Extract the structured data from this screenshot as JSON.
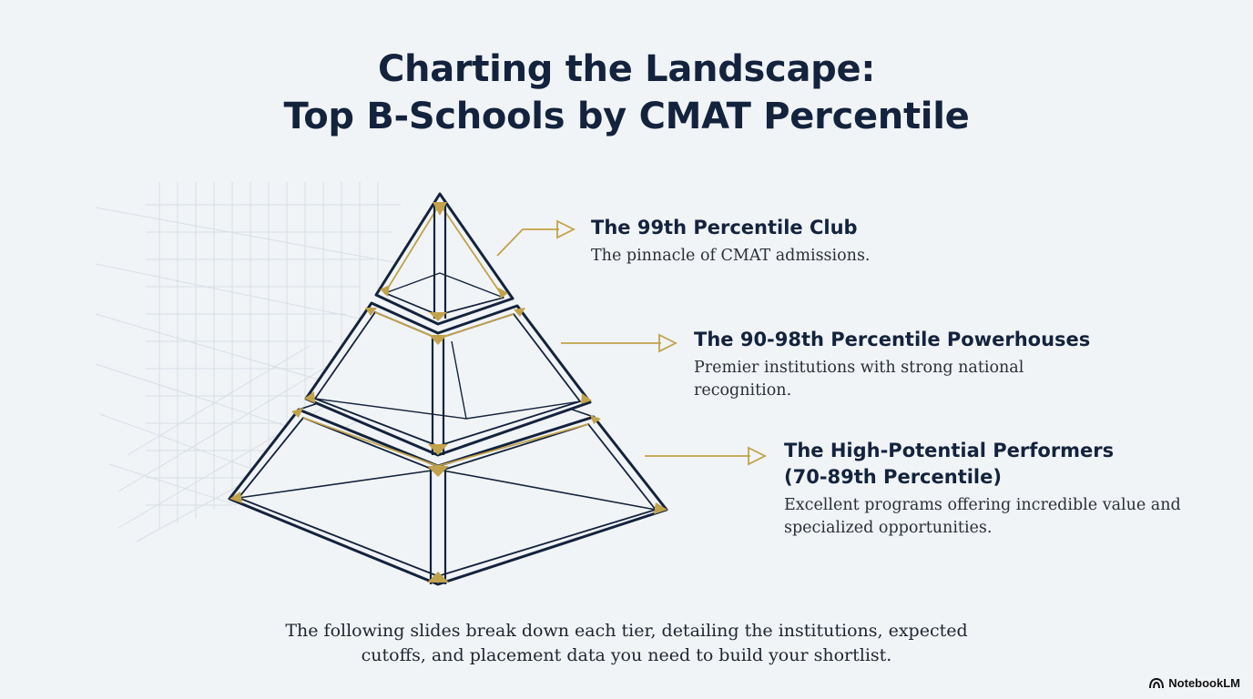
{
  "title": {
    "line1": "Charting the Landscape:",
    "line2": "Top B-Schools by CMAT Percentile"
  },
  "tiers": [
    {
      "heading_lines": [
        "The 99th Percentile Club"
      ],
      "description": "The pinnacle of CMAT admissions."
    },
    {
      "heading_lines": [
        "The 90-98th Percentile Powerhouses"
      ],
      "description": "Premier institutions with strong national recognition."
    },
    {
      "heading_lines": [
        "The High-Potential Performers",
        "(70-89th Percentile)"
      ],
      "description": "Excellent programs offering incredible value and specialized opportunities."
    }
  ],
  "footer": {
    "line1": "The following slides break down each tier, detailing the institutions, expected",
    "line2": "cutoffs, and placement data you need to build your shortlist."
  },
  "brand": {
    "label": "NotebookLM",
    "icon": "notebooklm-logo-icon"
  },
  "colors": {
    "navy": "#13233d",
    "gold": "#c2a24a",
    "background": "#f1f4f7",
    "grid": "#d5dbe2"
  }
}
